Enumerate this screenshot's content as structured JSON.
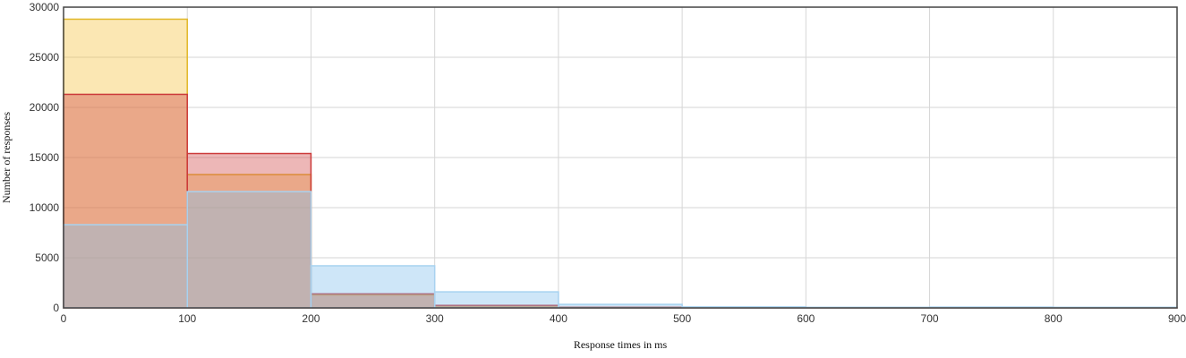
{
  "chart_data": {
    "type": "bar",
    "subtype": "overlapping-histogram",
    "xlabel": "Response times in ms",
    "ylabel": "Number of responses",
    "xlim": [
      0,
      900
    ],
    "ylim": [
      0,
      30000
    ],
    "xticks": [
      0,
      100,
      200,
      300,
      400,
      500,
      600,
      700,
      800,
      900
    ],
    "yticks": [
      0,
      5000,
      10000,
      15000,
      20000,
      25000,
      30000
    ],
    "grid": true,
    "bin_edges": [
      0,
      100,
      200,
      300,
      400,
      500,
      600,
      700,
      800,
      900
    ],
    "series": [
      {
        "fill": "#f5c342",
        "stroke": "#e2b92a",
        "values": [
          28800,
          13300,
          1300,
          200,
          50,
          20,
          10,
          10,
          10
        ]
      },
      {
        "fill": "#d14a4a",
        "stroke": "#cc3b3b",
        "values": [
          21300,
          15400,
          1400,
          250,
          60,
          20,
          10,
          10,
          10
        ]
      },
      {
        "fill": "#84c0ee",
        "stroke": "#a8d2f0",
        "values": [
          8300,
          11600,
          4200,
          1600,
          350,
          100,
          60,
          80,
          60
        ]
      }
    ]
  }
}
